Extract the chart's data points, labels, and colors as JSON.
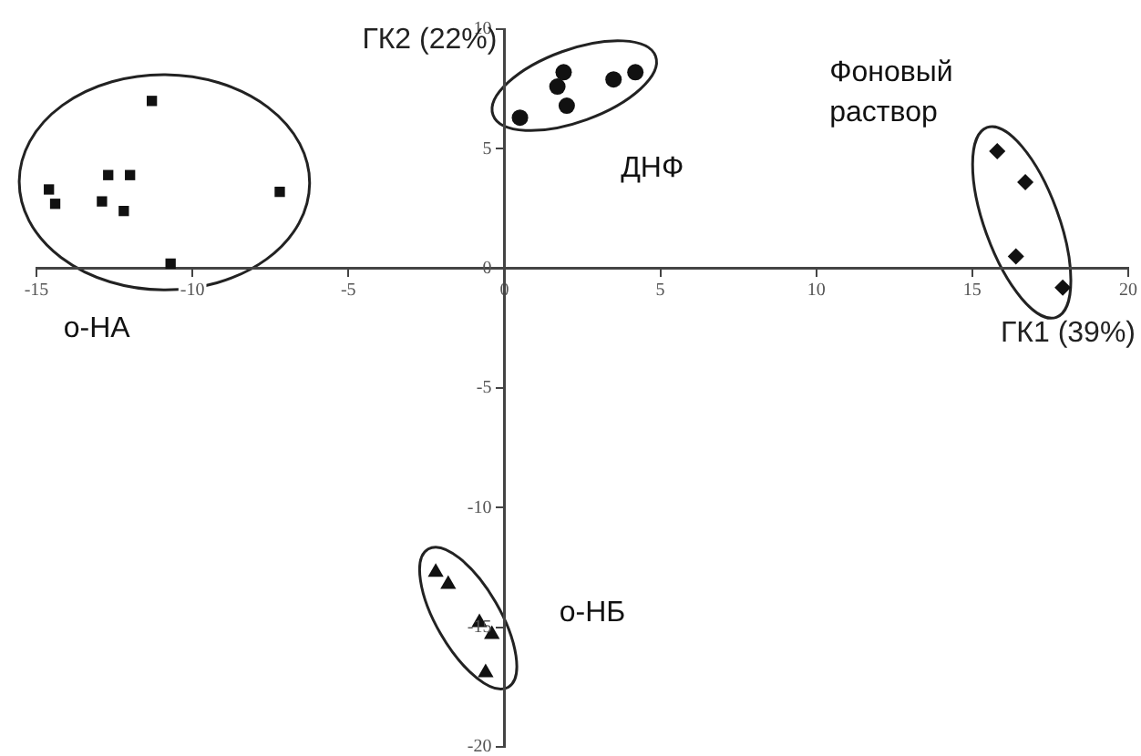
{
  "chart_data": {
    "type": "scatter",
    "xlabel": "ГК1 (39%)",
    "ylabel": "ГК2 (22%)",
    "xlim": [
      -15,
      20
    ],
    "xticks": [
      -15,
      -10,
      -5,
      0,
      5,
      10,
      15,
      20
    ],
    "ylim": [
      -20,
      10
    ],
    "yticks": [
      -20,
      -15,
      -10,
      -5,
      0,
      5,
      10
    ],
    "grid": false,
    "legend": false,
    "series": [
      {
        "name": "о-НА",
        "color": "#111111",
        "marker": "square",
        "x": [
          -11.3,
          -14.6,
          -14.4,
          -12.7,
          -12.0,
          -12.9,
          -12.2,
          -7.2,
          -10.7
        ],
        "values": [
          7.0,
          3.3,
          2.7,
          3.9,
          3.9,
          2.8,
          2.4,
          3.2,
          0.2
        ]
      },
      {
        "name": "ДНФ",
        "color": "#111111",
        "marker": "circle",
        "x": [
          0.5,
          1.7,
          1.9,
          2.0,
          3.5,
          4.2
        ],
        "values": [
          6.3,
          7.6,
          8.2,
          6.8,
          7.9,
          8.2
        ]
      },
      {
        "name": "Фоновый раствор",
        "color": "#111111",
        "marker": "diamond",
        "x": [
          15.8,
          16.7,
          16.4,
          17.9
        ],
        "values": [
          4.9,
          3.6,
          0.5,
          -0.8
        ]
      },
      {
        "name": "о-НБ",
        "color": "#111111",
        "marker": "triangle",
        "x": [
          -2.2,
          -1.8,
          -0.8,
          -0.4,
          -0.6
        ],
        "values": [
          -12.7,
          -13.2,
          -14.8,
          -15.3,
          -16.9
        ]
      }
    ]
  }
}
